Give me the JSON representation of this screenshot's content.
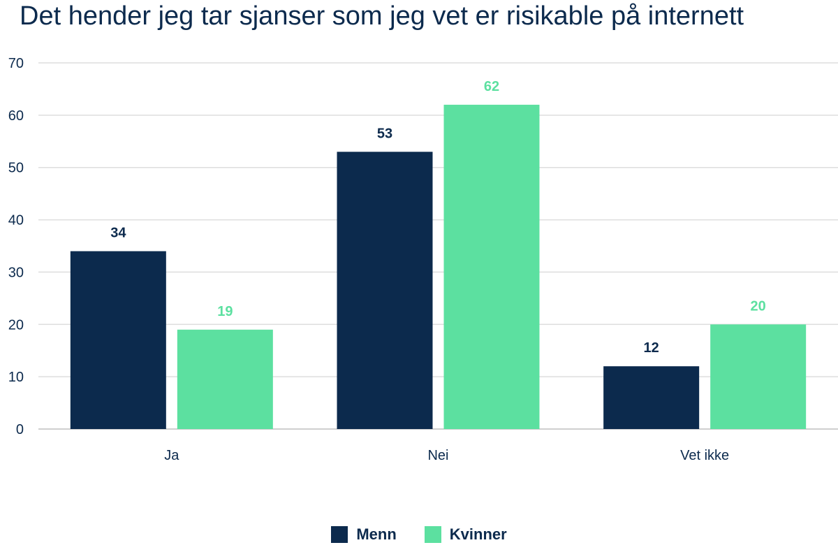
{
  "chart_data": {
    "type": "bar",
    "title": "Det hender jeg tar sjanser som jeg vet er risikable på internett",
    "categories": [
      "Ja",
      "Nei",
      "Vet ikke"
    ],
    "series": [
      {
        "name": "Menn",
        "values": [
          34,
          53,
          12
        ],
        "color": "#0c2a4d",
        "label_color": "#0c2a4d"
      },
      {
        "name": "Kvinner",
        "values": [
          19,
          62,
          20
        ],
        "color": "#5ce0a0",
        "label_color": "#5ce0a0"
      }
    ],
    "yticks": [
      0,
      10,
      20,
      30,
      40,
      50,
      60,
      70
    ],
    "ylim": [
      0,
      70
    ],
    "xlabel": "",
    "ylabel": "",
    "grid": true,
    "legend_position": "bottom-center"
  }
}
